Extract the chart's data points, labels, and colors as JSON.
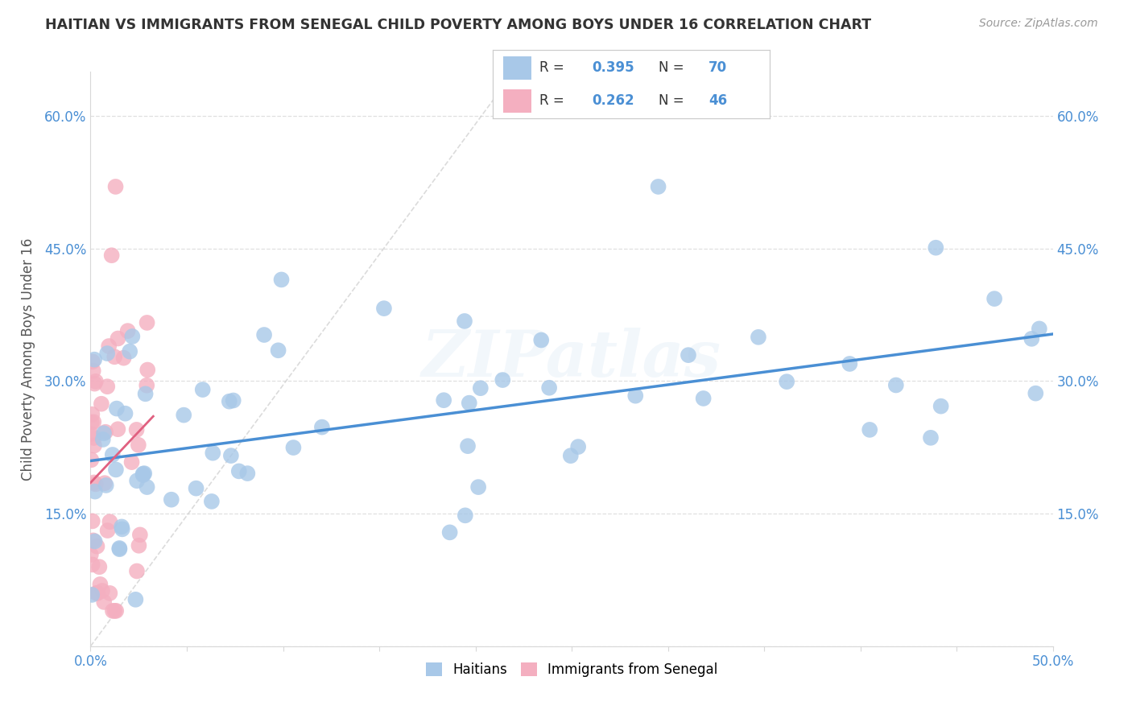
{
  "title": "HAITIAN VS IMMIGRANTS FROM SENEGAL CHILD POVERTY AMONG BOYS UNDER 16 CORRELATION CHART",
  "source": "Source: ZipAtlas.com",
  "ylabel": "Child Poverty Among Boys Under 16",
  "xlim": [
    0,
    0.5
  ],
  "ylim": [
    0,
    0.65
  ],
  "x_ticks": [
    0.0,
    0.05,
    0.1,
    0.15,
    0.2,
    0.25,
    0.3,
    0.35,
    0.4,
    0.45,
    0.5
  ],
  "y_ticks": [
    0.0,
    0.15,
    0.3,
    0.45,
    0.6
  ],
  "haiti_color": "#a8c8e8",
  "senegal_color": "#f4afc0",
  "haiti_line_color": "#4a8fd4",
  "senegal_line_color": "#e06080",
  "accent_color": "#4a8fd4",
  "haiti_R": 0.395,
  "haiti_N": 70,
  "senegal_R": 0.262,
  "senegal_N": 46,
  "background_color": "#ffffff",
  "grid_color": "#d8d8d8",
  "watermark": "ZIPatlas"
}
